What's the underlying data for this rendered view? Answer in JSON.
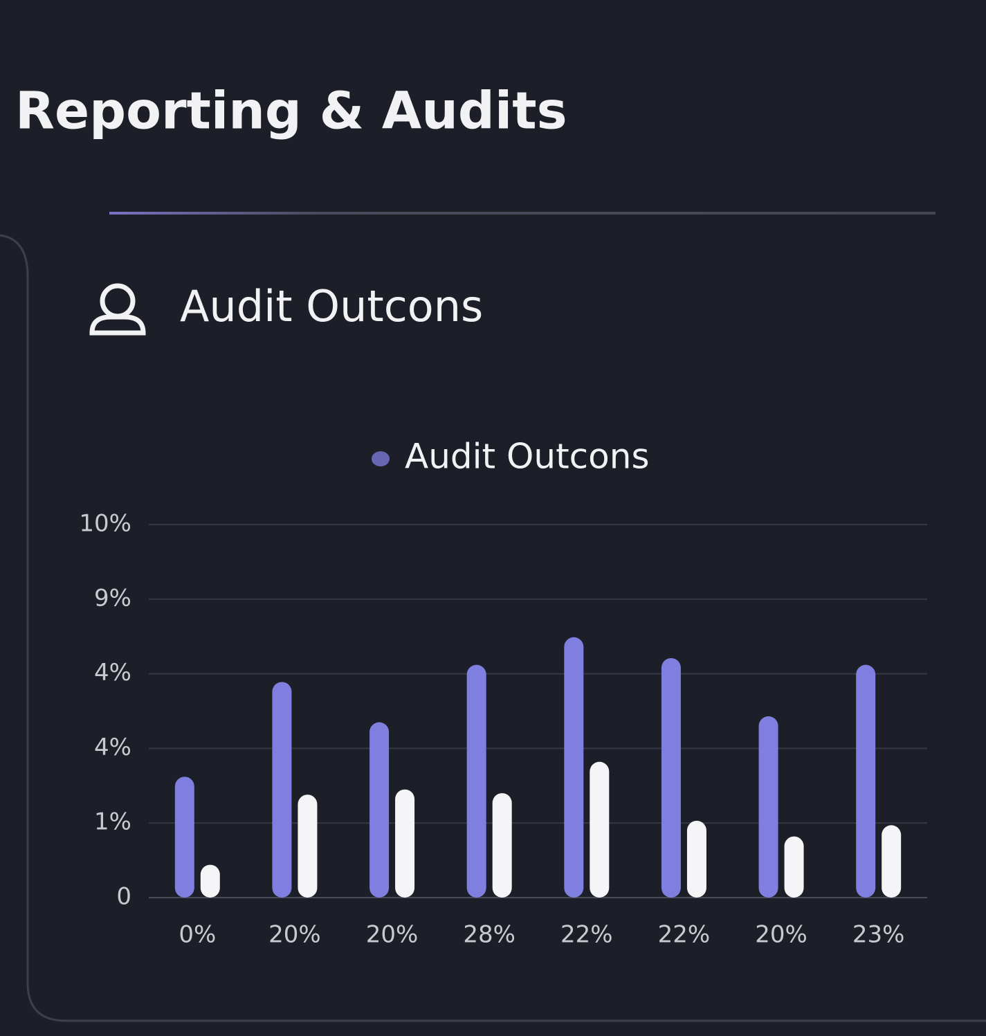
{
  "header": {
    "title": "Reporting & Audits"
  },
  "chart_data": {
    "type": "bar",
    "title": "Audit Outcons",
    "categories": [
      "0%",
      "20%",
      "20%",
      "28%",
      "22%",
      "22%",
      "20%",
      "23%"
    ],
    "series": [
      {
        "name": "Audit Outcons",
        "color": "#7f7fe0",
        "values": [
          1.62,
          2.89,
          2.35,
          3.12,
          3.49,
          3.21,
          2.43,
          3.12
        ]
      },
      {
        "color": "#f5f5f7",
        "values": [
          0.44,
          1.38,
          1.45,
          1.4,
          1.82,
          1.03,
          0.82,
          0.97
        ]
      }
    ],
    "ylim": [
      0,
      5
    ],
    "yticks": [
      0,
      {
        "value": 1,
        "label": "1%"
      },
      {
        "value": 2,
        "label": "4%"
      },
      {
        "value": 3,
        "label": "4%"
      },
      {
        "value": 4,
        "label": "9%"
      },
      {
        "value": 5,
        "label": "10%"
      }
    ],
    "grid": true,
    "legend": "top"
  }
}
